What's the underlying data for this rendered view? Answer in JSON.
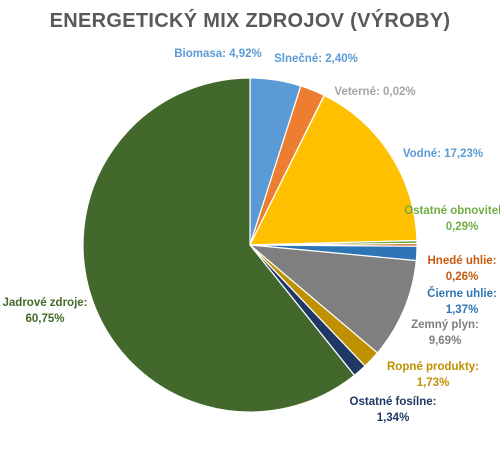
{
  "chart_data": {
    "type": "pie",
    "title": "ENERGETICKÝ MIX ZDROJOV (VÝROBY)",
    "slices": [
      {
        "name": "Biomasa",
        "value": 4.92,
        "value_label": "4,92%",
        "color": "#5B9BD5",
        "label_color": "#5B9BD5"
      },
      {
        "name": "Slnečné",
        "value": 2.4,
        "value_label": "2,40%",
        "color": "#ED7D31",
        "label_color": "#5B9BD5"
      },
      {
        "name": "Veterné",
        "value": 0.02,
        "value_label": "0,02%",
        "color": "#A5A5A5",
        "label_color": "#A5A5A5"
      },
      {
        "name": "Vodné",
        "value": 17.23,
        "value_label": "17,23%",
        "color": "#FFC000",
        "label_color": "#5B9BD5"
      },
      {
        "name": "Ostatné obnoviteľné",
        "value": 0.29,
        "value_label": "0,29%",
        "color": "#70AD47",
        "label_color": "#70AD47"
      },
      {
        "name": "Hnedé uhlie",
        "value": 0.26,
        "value_label": "0,26%",
        "color": "#C55A11",
        "label_color": "#C55A11"
      },
      {
        "name": "Čierne uhlie",
        "value": 1.37,
        "value_label": "1,37%",
        "color": "#2E75B6",
        "label_color": "#2E75B6"
      },
      {
        "name": "Zemný plyn",
        "value": 9.69,
        "value_label": "9,69%",
        "color": "#7F7F7F",
        "label_color": "#7F7F7F"
      },
      {
        "name": "Ropné produkty",
        "value": 1.73,
        "value_label": "1,73%",
        "color": "#BF9000",
        "label_color": "#BF9000"
      },
      {
        "name": "Ostatné fosílne",
        "value": 1.34,
        "value_label": "1,34%",
        "color": "#203864",
        "label_color": "#203864"
      },
      {
        "name": "Jadrové zdroje",
        "value": 60.75,
        "value_label": "60,75%",
        "color": "#43682B",
        "label_color": "#43682B"
      }
    ]
  }
}
